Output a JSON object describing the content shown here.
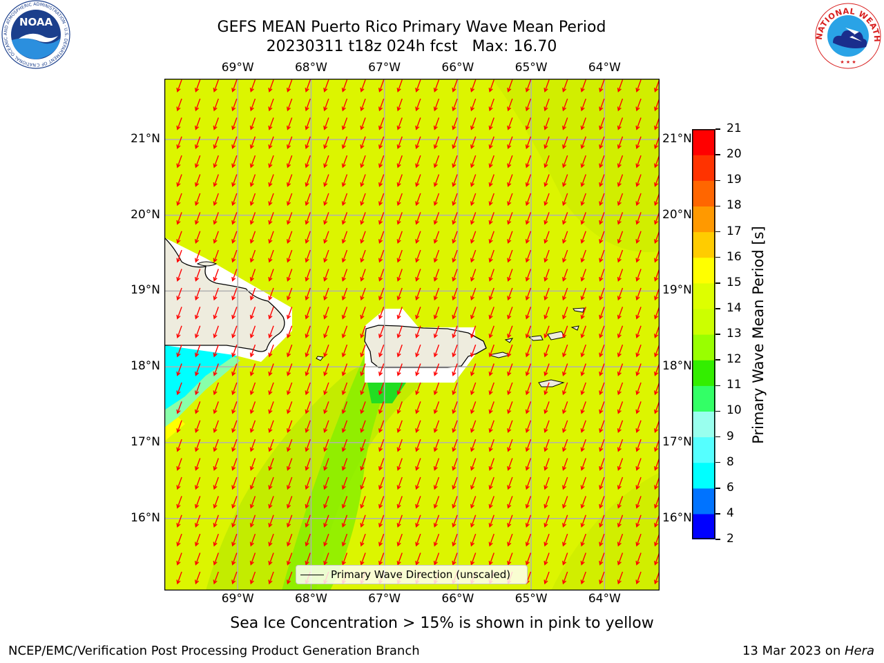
{
  "header": {
    "title_line1": "GEFS MEAN Puerto Rico Primary Wave Mean Period",
    "title_line2": "20230311 t18z 024h fcst   Max: 16.70"
  },
  "logos": {
    "left": "NOAA",
    "left_ring": "NATIONAL OCEANIC AND ATMOSPHERIC ADMINISTRATION · U.S. DEPARTMENT OF COMMERCE",
    "right_ring": "NATIONAL WEATHER SERVICE"
  },
  "map": {
    "lon_labels": [
      "69°W",
      "68°W",
      "67°W",
      "66°W",
      "65°W",
      "64°W"
    ],
    "lat_labels": [
      "21°N",
      "20°N",
      "19°N",
      "18°N",
      "17°N",
      "16°N"
    ],
    "lon_range": [
      -70.0,
      -63.25
    ],
    "lat_range": [
      15.05,
      21.8
    ],
    "ocean_color": "#dcf500",
    "land_color": "#eeecde",
    "arrow_color": "#ff0000",
    "grid": true,
    "legend_label": "Primary Wave Direction (unscaled)",
    "legend_placement": "bottom-center"
  },
  "colorbar": {
    "label": "Primary Wave Mean Period [s]",
    "ticks": [
      "21",
      "20",
      "19",
      "18",
      "17",
      "16",
      "15",
      "14",
      "13",
      "12",
      "11",
      "10",
      "9",
      "8",
      "6",
      "4",
      "2"
    ],
    "colors": [
      "#0000ff",
      "#0073ff",
      "#00ffff",
      "#55ffff",
      "#99ffee",
      "#33ff66",
      "#33ee00",
      "#99ff00",
      "#ccff00",
      "#ddff00",
      "#ffff00",
      "#ffcc00",
      "#ff9900",
      "#ff6600",
      "#ff3300",
      "#ff0000"
    ]
  },
  "note": "Sea Ice Concentration > 15% is shown in pink to yellow",
  "footer": {
    "left": "NCEP/EMC/Verification Post Processing Product Generation Branch",
    "right_date": "13 Mar 2023 on ",
    "right_machine": "Hera"
  }
}
